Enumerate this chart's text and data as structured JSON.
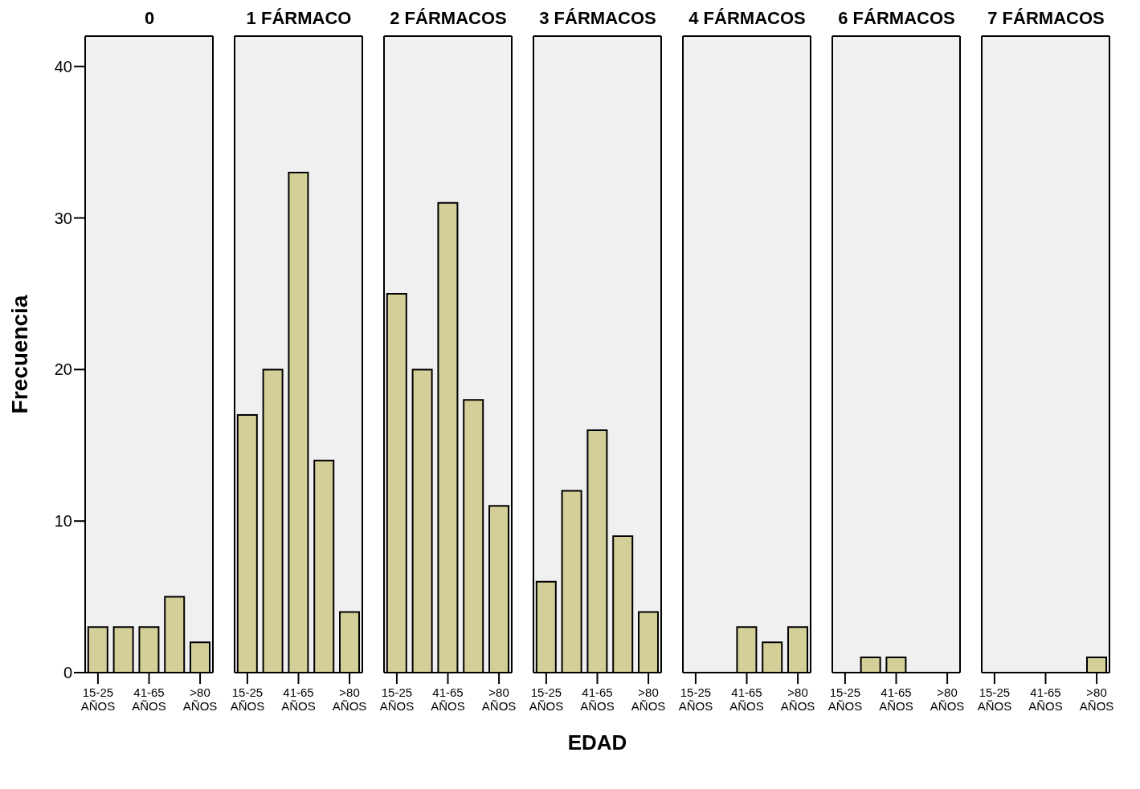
{
  "chart_data": [
    {
      "type": "bar",
      "title": "0",
      "ylabel": "Frecuencia",
      "categories": [
        "15-25 AÑOS",
        null,
        "41-65 AÑOS",
        null,
        ">80 AÑOS"
      ],
      "values": [
        3,
        3,
        3,
        5,
        2
      ],
      "color": "#d4cf98",
      "ylim": [
        0,
        42
      ],
      "yticks": [
        0,
        10,
        20,
        30,
        40
      ]
    },
    {
      "type": "bar",
      "title": "1 FÁRMACO",
      "categories": [
        "15-25 AÑOS",
        null,
        "41-65 AÑOS",
        null,
        ">80 AÑOS"
      ],
      "values": [
        17,
        20,
        33,
        14,
        4
      ],
      "color": "#d4cf98",
      "ylim": [
        0,
        42
      ],
      "yticks": [
        0,
        10,
        20,
        30,
        40
      ],
      "tick_labels": "x"
    },
    {
      "type": "bar",
      "title": "2 FÁRMACOS",
      "categories": [
        "15-25 AÑOS",
        null,
        "41-65 AÑOS",
        null,
        ">80 AÑOS"
      ],
      "values": [
        25,
        20,
        31,
        18,
        11
      ],
      "color": "#d4cf98",
      "ylim": [
        0,
        42
      ],
      "yticks": [
        0,
        10,
        20,
        30,
        40
      ],
      "tick_labels": "x"
    },
    {
      "type": "bar",
      "title": "3 FÁRMACOS",
      "xlabel": "EDAD",
      "categories": [
        "15-25 AÑOS",
        null,
        "41-65 AÑOS",
        null,
        ">80 AÑOS"
      ],
      "values": [
        6,
        12,
        16,
        9,
        4
      ],
      "color": "#d4cf98",
      "ylim": [
        0,
        42
      ],
      "yticks": [
        0,
        10,
        20,
        30,
        40
      ],
      "tick_labels": "x"
    },
    {
      "type": "bar",
      "title": "4 FÁRMACOS",
      "categories": [
        "15-25 AÑOS",
        null,
        "41-65 AÑOS",
        null,
        ">80 AÑOS"
      ],
      "values": [
        0,
        0,
        3,
        2,
        3
      ],
      "color": "#d4cf98",
      "ylim": [
        0,
        42
      ],
      "yticks": [
        0,
        10,
        20,
        30,
        40
      ],
      "tick_labels": "x"
    },
    {
      "type": "bar",
      "title": "6 FÁRMACOS",
      "categories": [
        "15-25 AÑOS",
        null,
        "41-65 AÑOS",
        null,
        ">80 AÑOS"
      ],
      "values": [
        0,
        1,
        1,
        0,
        0
      ],
      "color": "#d4cf98",
      "ylim": [
        0,
        42
      ],
      "yticks": [
        0,
        10,
        20,
        30,
        40
      ],
      "tick_labels": "x"
    },
    {
      "type": "bar",
      "title": "7 FÁRMACOS",
      "categories": [
        "15-25 AÑOS",
        null,
        "41-65 AÑOS",
        null,
        ">80 AÑOS"
      ],
      "values": [
        0,
        0,
        0,
        0,
        1
      ],
      "color": "#d4cf98",
      "ylim": [
        0,
        42
      ],
      "yticks": [
        0,
        10,
        20,
        30,
        40
      ],
      "tick_labels": "x"
    }
  ]
}
